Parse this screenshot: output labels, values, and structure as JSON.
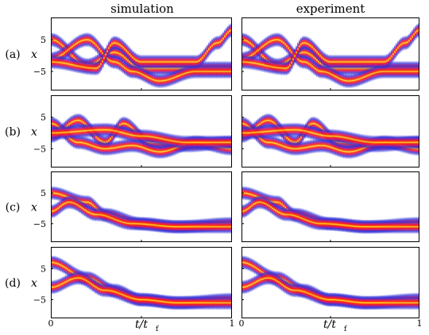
{
  "figure": {
    "column_titles": [
      "simulation",
      "experiment"
    ],
    "row_labels": [
      "(a)",
      "(b)",
      "(c)",
      "(d)"
    ],
    "y_axis_label": "x",
    "y_ticks": [
      "5",
      "−5"
    ],
    "x_axis_label_main": "t/t",
    "x_axis_label_sub": "f",
    "x_ticks_left": [
      "0",
      "1"
    ],
    "x_ticks_right": [
      "0",
      "1"
    ]
  },
  "colormap": [
    "#3030d8",
    "#c21a7a",
    "#ff2010",
    "#ff9a10",
    "#ffe838"
  ],
  "chart_data": {
    "type": "heatmap",
    "title": "",
    "xlabel": "t/t_f",
    "ylabel": "x",
    "xlim": [
      0,
      1
    ],
    "ylim": [
      -11,
      12
    ],
    "y_ticks": [
      5,
      -5
    ],
    "grid": false,
    "panels": [
      {
        "row": "(a)",
        "column": "simulation",
        "centers": [
          [
            [
              0,
              5
            ],
            [
              0.2,
              -3
            ],
            [
              0.35,
              1
            ],
            [
              0.5,
              -4
            ],
            [
              0.65,
              -4
            ],
            [
              0.8,
              -4
            ],
            [
              1,
              -4
            ]
          ],
          [
            [
              0,
              -1
            ],
            [
              0.2,
              5
            ],
            [
              0.35,
              -2
            ],
            [
              0.45,
              -5
            ],
            [
              0.6,
              -8
            ],
            [
              0.8,
              -5
            ],
            [
              1,
              -5
            ]
          ],
          [
            [
              0,
              -2
            ],
            [
              0.25,
              -4
            ],
            [
              0.35,
              4
            ],
            [
              0.5,
              -2
            ],
            [
              0.8,
              -2
            ],
            [
              0.92,
              4
            ],
            [
              1,
              8
            ]
          ]
        ]
      },
      {
        "row": "(a)",
        "column": "experiment",
        "centers": [
          [
            [
              0,
              5
            ],
            [
              0.2,
              -3
            ],
            [
              0.35,
              1
            ],
            [
              0.5,
              -4
            ],
            [
              0.65,
              -4
            ],
            [
              0.8,
              -4
            ],
            [
              1,
              -4
            ]
          ],
          [
            [
              0,
              -1
            ],
            [
              0.2,
              5
            ],
            [
              0.35,
              -2
            ],
            [
              0.45,
              -5
            ],
            [
              0.6,
              -8
            ],
            [
              0.8,
              -5
            ],
            [
              1,
              -5
            ]
          ],
          [
            [
              0,
              -2
            ],
            [
              0.25,
              -4
            ],
            [
              0.35,
              4
            ],
            [
              0.5,
              -2
            ],
            [
              0.8,
              -2
            ],
            [
              0.92,
              4
            ],
            [
              1,
              8
            ]
          ]
        ]
      },
      {
        "row": "(b)",
        "column": "simulation",
        "centers": [
          [
            [
              0,
              -1
            ],
            [
              0.15,
              4
            ],
            [
              0.3,
              -3
            ],
            [
              0.4,
              3
            ],
            [
              0.55,
              -3
            ],
            [
              0.75,
              -4
            ],
            [
              1,
              -3
            ]
          ],
          [
            [
              0,
              3
            ],
            [
              0.15,
              -3
            ],
            [
              0.3,
              -5
            ],
            [
              0.45,
              -4
            ],
            [
              0.6,
              -6
            ],
            [
              0.8,
              -3
            ],
            [
              1,
              -5
            ]
          ],
          [
            [
              0,
              0
            ],
            [
              0.3,
              1
            ],
            [
              0.5,
              -1
            ],
            [
              0.75,
              -3
            ],
            [
              1,
              -3
            ]
          ]
        ]
      },
      {
        "row": "(b)",
        "column": "experiment",
        "centers": [
          [
            [
              0,
              -1
            ],
            [
              0.15,
              4
            ],
            [
              0.3,
              -3
            ],
            [
              0.4,
              3
            ],
            [
              0.55,
              -3
            ],
            [
              0.75,
              -4
            ],
            [
              1,
              -3
            ]
          ],
          [
            [
              0,
              3
            ],
            [
              0.15,
              -3
            ],
            [
              0.3,
              -5
            ],
            [
              0.45,
              -4
            ],
            [
              0.6,
              -6
            ],
            [
              0.8,
              -3
            ],
            [
              1,
              -5
            ]
          ],
          [
            [
              0,
              0
            ],
            [
              0.3,
              1
            ],
            [
              0.5,
              -1
            ],
            [
              0.75,
              -3
            ],
            [
              1,
              -3
            ]
          ]
        ]
      },
      {
        "row": "(c)",
        "column": "simulation",
        "centers": [
          [
            [
              0,
              5
            ],
            [
              0.2,
              2
            ],
            [
              0.3,
              -2
            ],
            [
              0.5,
              -5
            ],
            [
              0.7,
              -6
            ],
            [
              1,
              -5
            ]
          ],
          [
            [
              0,
              -1
            ],
            [
              0.1,
              2
            ],
            [
              0.25,
              -2
            ],
            [
              0.45,
              -5
            ],
            [
              0.7,
              -6
            ],
            [
              1,
              -6
            ]
          ]
        ]
      },
      {
        "row": "(c)",
        "column": "experiment",
        "centers": [
          [
            [
              0,
              5
            ],
            [
              0.2,
              2
            ],
            [
              0.3,
              -2
            ],
            [
              0.5,
              -5
            ],
            [
              0.7,
              -6
            ],
            [
              1,
              -5
            ]
          ],
          [
            [
              0,
              -1
            ],
            [
              0.1,
              2
            ],
            [
              0.25,
              -2
            ],
            [
              0.45,
              -5
            ],
            [
              0.7,
              -6
            ],
            [
              1,
              -6
            ]
          ]
        ]
      },
      {
        "row": "(d)",
        "column": "simulation",
        "centers": [
          [
            [
              0,
              7
            ],
            [
              0.2,
              2
            ],
            [
              0.35,
              -2
            ],
            [
              0.5,
              -5
            ],
            [
              0.7,
              -6
            ],
            [
              1,
              -5
            ]
          ],
          [
            [
              0,
              -1
            ],
            [
              0.15,
              2
            ],
            [
              0.3,
              -2
            ],
            [
              0.5,
              -5
            ],
            [
              0.7,
              -6
            ],
            [
              1,
              -6
            ]
          ]
        ]
      },
      {
        "row": "(d)",
        "column": "experiment",
        "centers": [
          [
            [
              0,
              7
            ],
            [
              0.2,
              2
            ],
            [
              0.35,
              -2
            ],
            [
              0.5,
              -5
            ],
            [
              0.7,
              -6
            ],
            [
              1,
              -5
            ]
          ],
          [
            [
              0,
              -1
            ],
            [
              0.15,
              2
            ],
            [
              0.3,
              -2
            ],
            [
              0.5,
              -5
            ],
            [
              0.7,
              -6
            ],
            [
              1,
              -6
            ]
          ]
        ]
      }
    ]
  }
}
